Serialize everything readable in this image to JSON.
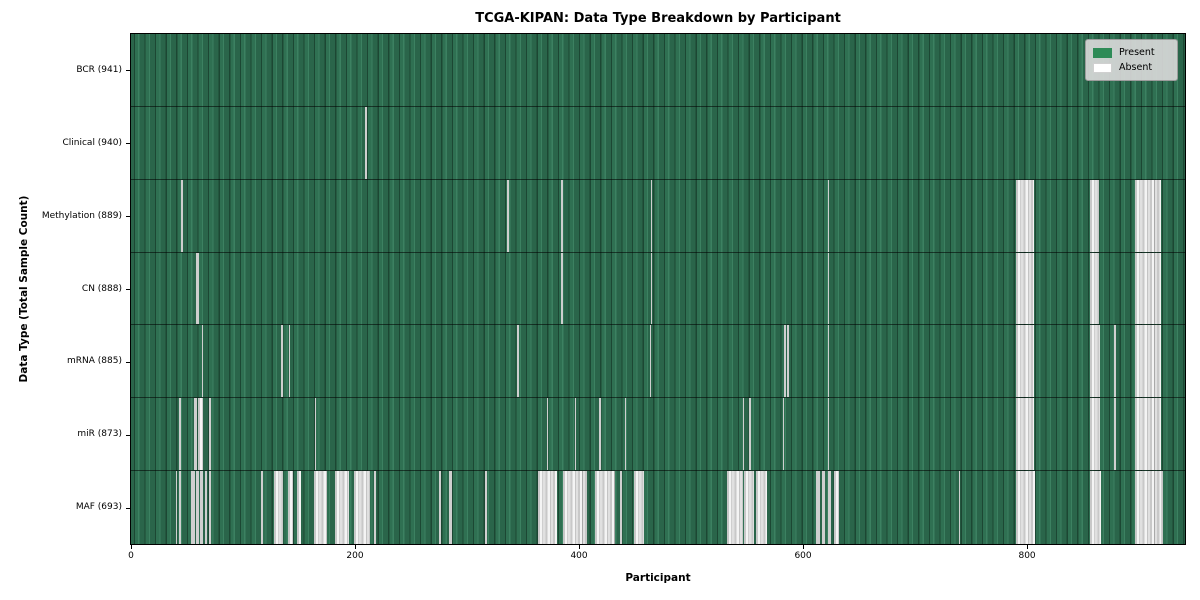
{
  "chart_data": {
    "type": "heatmap",
    "title": "TCGA-KIPAN: Data Type Breakdown by Participant",
    "xlabel": "Participant",
    "ylabel": "Data Type (Total Sample Count)",
    "x_range": [
      0,
      941
    ],
    "x_ticks": [
      0,
      200,
      400,
      600,
      800
    ],
    "grid": false,
    "legend_position": "upper right",
    "legend": [
      {
        "label": "Present",
        "color": "#2e8b57"
      },
      {
        "label": "Absent",
        "color": "#ffffff"
      }
    ],
    "colors": {
      "present": "#2e8b57",
      "absent": "#ffffff"
    },
    "rows": [
      {
        "label": "BCR (941)",
        "name": "BCR",
        "present_count": 941,
        "absent_ranges": []
      },
      {
        "label": "Clinical (940)",
        "name": "Clinical",
        "present_count": 940,
        "absent_ranges": [
          [
            209,
            210
          ]
        ]
      },
      {
        "label": "Methylation (889)",
        "name": "Methylation",
        "present_count": 889,
        "absent_ranges": [
          [
            45,
            46
          ],
          [
            336,
            337
          ],
          [
            384,
            385
          ],
          [
            464,
            465
          ],
          [
            622,
            623
          ],
          [
            790,
            806
          ],
          [
            856,
            864
          ],
          [
            896,
            920
          ]
        ]
      },
      {
        "label": "CN (888)",
        "name": "CN",
        "present_count": 888,
        "absent_ranges": [
          [
            58,
            61
          ],
          [
            384,
            385
          ],
          [
            464,
            465
          ],
          [
            622,
            623
          ],
          [
            790,
            806
          ],
          [
            856,
            864
          ],
          [
            896,
            920
          ]
        ]
      },
      {
        "label": "mRNA (885)",
        "name": "mRNA",
        "present_count": 885,
        "absent_ranges": [
          [
            63,
            64
          ],
          [
            134,
            135
          ],
          [
            141,
            142
          ],
          [
            345,
            346
          ],
          [
            463,
            464
          ],
          [
            583,
            584
          ],
          [
            586,
            587
          ],
          [
            622,
            623
          ],
          [
            790,
            806
          ],
          [
            856,
            865
          ],
          [
            878,
            879
          ],
          [
            896,
            920
          ]
        ]
      },
      {
        "label": "miR (873)",
        "name": "miR",
        "present_count": 873,
        "absent_ranges": [
          [
            43,
            44
          ],
          [
            56,
            59
          ],
          [
            60,
            64
          ],
          [
            70,
            71
          ],
          [
            164,
            165
          ],
          [
            371,
            372
          ],
          [
            396,
            397
          ],
          [
            418,
            419
          ],
          [
            441,
            442
          ],
          [
            546,
            547
          ],
          [
            552,
            553
          ],
          [
            582,
            583
          ],
          [
            622,
            623
          ],
          [
            790,
            806
          ],
          [
            856,
            865
          ],
          [
            878,
            879
          ],
          [
            896,
            920
          ]
        ]
      },
      {
        "label": "MAF (693)",
        "name": "MAF",
        "present_count": 693,
        "absent_ranges": [
          [
            40,
            41
          ],
          [
            43,
            44
          ],
          [
            54,
            57
          ],
          [
            58,
            61
          ],
          [
            62,
            64
          ],
          [
            66,
            68
          ],
          [
            70,
            71
          ],
          [
            116,
            118
          ],
          [
            128,
            136
          ],
          [
            140,
            145
          ],
          [
            148,
            152
          ],
          [
            163,
            175
          ],
          [
            182,
            195
          ],
          [
            199,
            213
          ],
          [
            217,
            218
          ],
          [
            275,
            276
          ],
          [
            284,
            287
          ],
          [
            316,
            318
          ],
          [
            363,
            380
          ],
          [
            386,
            407
          ],
          [
            414,
            432
          ],
          [
            437,
            438
          ],
          [
            449,
            458
          ],
          [
            532,
            546
          ],
          [
            547,
            556
          ],
          [
            558,
            568
          ],
          [
            612,
            615
          ],
          [
            617,
            620
          ],
          [
            622,
            625
          ],
          [
            628,
            632
          ],
          [
            739,
            740
          ],
          [
            790,
            807
          ],
          [
            856,
            866
          ],
          [
            896,
            921
          ]
        ]
      }
    ]
  }
}
